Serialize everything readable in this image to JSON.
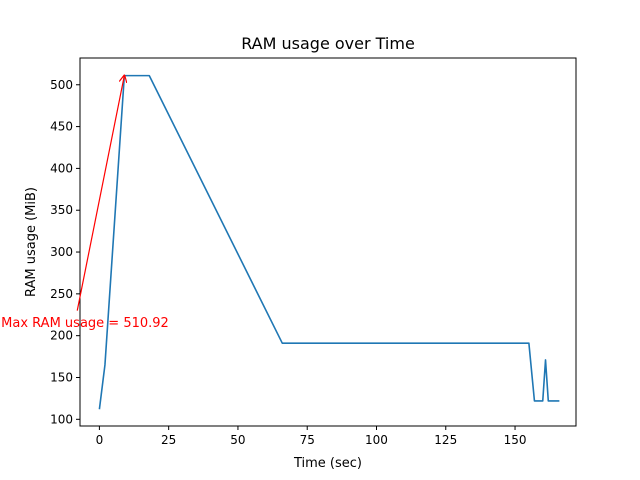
{
  "chart_data": {
    "type": "line",
    "title": "RAM usage over Time",
    "xlabel": "Time (sec)",
    "ylabel": "RAM usage (MiB)",
    "xlim": [
      -7,
      172
    ],
    "ylim": [
      92,
      532
    ],
    "xticks": [
      0,
      25,
      50,
      75,
      100,
      125,
      150
    ],
    "yticks": [
      100,
      150,
      200,
      250,
      300,
      350,
      400,
      450,
      500
    ],
    "grid": false,
    "series": [
      {
        "color": "#1f77b4",
        "x": [
          0,
          2,
          9,
          18,
          66,
          155,
          157,
          160,
          161,
          162,
          166
        ],
        "y": [
          112,
          165,
          510.92,
          510.92,
          191,
          191,
          122,
          122,
          171,
          122,
          122
        ]
      }
    ],
    "annotations": [
      {
        "text": "Max RAM usage = 510.92",
        "color": "#ff0000",
        "arrow_to": [
          9,
          510.92
        ],
        "arrow_from": [
          -8,
          230
        ]
      }
    ]
  }
}
